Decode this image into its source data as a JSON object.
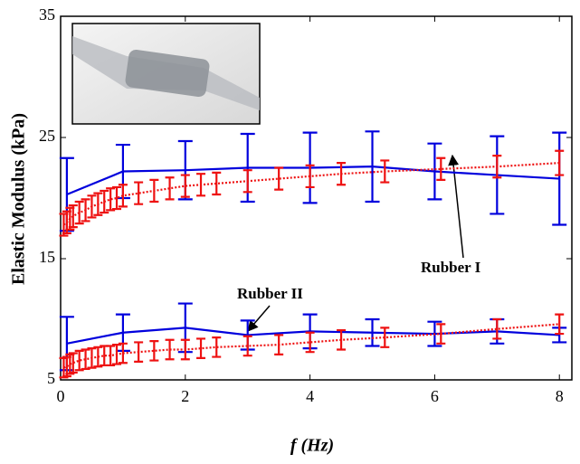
{
  "chart_data": {
    "type": "line",
    "ylabel": "Elastic Modulus (kPa)",
    "xlabel": "f (Hz)",
    "xlim": [
      0,
      8.2
    ],
    "ylim": [
      5,
      35
    ],
    "xticks": [
      0,
      2,
      4,
      6,
      8
    ],
    "yticks": [
      5,
      15,
      25,
      35
    ],
    "annotations": [
      "Rubber I",
      "Rubber II"
    ],
    "series": [
      {
        "color": "#0000dd",
        "style": "solid",
        "x": [
          0.1,
          1,
          2,
          3,
          4,
          5,
          6,
          7,
          8
        ],
        "values": [
          20.3,
          22.2,
          22.3,
          22.5,
          22.5,
          22.6,
          22.2,
          21.9,
          21.6
        ],
        "errors": [
          3.0,
          2.2,
          2.4,
          2.8,
          2.9,
          2.9,
          2.3,
          3.2,
          3.8
        ]
      },
      {
        "color": "#ee1111",
        "style": "dotted",
        "x": [
          0.05,
          0.1,
          0.15,
          0.2,
          0.3,
          0.4,
          0.5,
          0.6,
          0.7,
          0.8,
          0.9,
          1.0,
          1.25,
          1.5,
          1.75,
          2.0,
          2.25,
          2.5,
          3.0,
          3.5,
          4.0,
          4.5,
          5.2,
          6.1,
          7.0,
          8.0
        ],
        "values": [
          17.8,
          18.0,
          18.3,
          18.5,
          18.8,
          19.0,
          19.3,
          19.5,
          19.7,
          19.9,
          20.0,
          20.2,
          20.4,
          20.6,
          20.8,
          21.0,
          21.1,
          21.2,
          21.4,
          21.6,
          21.8,
          22.0,
          22.2,
          22.4,
          22.6,
          22.9
        ],
        "errors": [
          0.9,
          0.9,
          0.9,
          0.9,
          0.9,
          0.9,
          0.9,
          0.9,
          0.9,
          0.9,
          0.9,
          0.9,
          0.9,
          0.9,
          0.9,
          0.9,
          0.9,
          0.9,
          0.9,
          0.9,
          0.9,
          0.9,
          0.9,
          0.9,
          0.9,
          1.0
        ]
      },
      {
        "color": "#0000dd",
        "style": "solid",
        "x": [
          0.1,
          1,
          2,
          3,
          4,
          5,
          6,
          7,
          8
        ],
        "values": [
          8.0,
          8.9,
          9.3,
          8.7,
          9.0,
          8.9,
          8.8,
          9.0,
          8.7
        ],
        "errors": [
          2.2,
          1.5,
          2.0,
          1.2,
          1.4,
          1.1,
          1.0,
          1.0,
          0.6
        ]
      },
      {
        "color": "#ee1111",
        "style": "dotted",
        "x": [
          0.05,
          0.1,
          0.15,
          0.2,
          0.3,
          0.4,
          0.5,
          0.6,
          0.7,
          0.8,
          0.9,
          1.0,
          1.25,
          1.5,
          1.75,
          2.0,
          2.25,
          2.5,
          3.0,
          3.5,
          4.0,
          4.5,
          5.2,
          6.1,
          7.0,
          8.0
        ],
        "values": [
          6.0,
          6.1,
          6.3,
          6.4,
          6.6,
          6.7,
          6.8,
          6.9,
          7.0,
          7.0,
          7.1,
          7.2,
          7.3,
          7.4,
          7.5,
          7.5,
          7.6,
          7.7,
          7.8,
          7.9,
          8.1,
          8.3,
          8.5,
          8.8,
          9.2,
          9.6
        ],
        "errors": [
          0.8,
          0.8,
          0.8,
          0.8,
          0.8,
          0.8,
          0.8,
          0.8,
          0.8,
          0.8,
          0.8,
          0.8,
          0.8,
          0.8,
          0.8,
          0.8,
          0.8,
          0.8,
          0.8,
          0.8,
          0.8,
          0.8,
          0.8,
          0.8,
          0.8,
          0.8
        ]
      }
    ]
  }
}
